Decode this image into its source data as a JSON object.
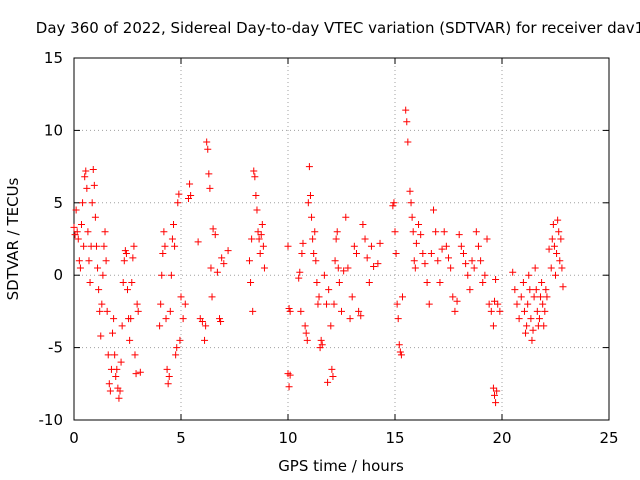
{
  "chart_data": {
    "type": "scatter",
    "title": "Day 360 of 2022, Sidereal Day-to-day VTEC variation (SDTVAR) for receiver dav1",
    "xlabel": "GPS time / hours",
    "ylabel": "SDTVAR / TECUs",
    "xlim": [
      0,
      25
    ],
    "ylim": [
      -10,
      15
    ],
    "xticks": [
      "0",
      "5",
      "10",
      "15",
      "20",
      "25"
    ],
    "yticks": [
      "-10",
      "-5",
      "0",
      "5",
      "10",
      "15"
    ],
    "grid": true,
    "marker": "+",
    "series": [
      {
        "name": "SDTVAR",
        "color": "#ff0000",
        "points": [
          [
            0.0,
            3.3
          ],
          [
            0.05,
            2.8
          ],
          [
            0.1,
            4.5
          ],
          [
            0.15,
            3.0
          ],
          [
            0.2,
            2.5
          ],
          [
            0.25,
            1.0
          ],
          [
            0.3,
            0.5
          ],
          [
            0.35,
            3.5
          ],
          [
            0.4,
            5.0
          ],
          [
            0.45,
            2.0
          ],
          [
            0.5,
            6.8
          ],
          [
            0.55,
            7.2
          ],
          [
            0.6,
            6.0
          ],
          [
            0.65,
            3.0
          ],
          [
            0.7,
            1.0
          ],
          [
            0.75,
            -0.5
          ],
          [
            0.8,
            2.0
          ],
          [
            0.85,
            5.0
          ],
          [
            0.9,
            7.3
          ],
          [
            0.95,
            6.2
          ],
          [
            1.0,
            4.0
          ],
          [
            1.05,
            2.0
          ],
          [
            1.1,
            0.5
          ],
          [
            1.15,
            -1.0
          ],
          [
            1.2,
            -2.5
          ],
          [
            1.25,
            -4.2
          ],
          [
            1.3,
            -2.0
          ],
          [
            1.35,
            0.0
          ],
          [
            1.4,
            2.0
          ],
          [
            1.45,
            3.0
          ],
          [
            1.5,
            1.0
          ],
          [
            1.55,
            -2.5
          ],
          [
            1.6,
            -5.5
          ],
          [
            1.65,
            -7.5
          ],
          [
            1.7,
            -8.0
          ],
          [
            1.75,
            -6.5
          ],
          [
            1.8,
            -4.0
          ],
          [
            1.85,
            -3.0
          ],
          [
            1.9,
            -5.5
          ],
          [
            1.95,
            -7.0
          ],
          [
            2.0,
            -6.5
          ],
          [
            2.05,
            -7.8
          ],
          [
            2.1,
            -8.5
          ],
          [
            2.15,
            -8.0
          ],
          [
            2.2,
            -6.0
          ],
          [
            2.25,
            -3.5
          ],
          [
            2.3,
            -0.5
          ],
          [
            2.35,
            1.0
          ],
          [
            2.4,
            1.7
          ],
          [
            2.45,
            1.5
          ],
          [
            2.5,
            -1.0
          ],
          [
            2.55,
            -3.0
          ],
          [
            2.6,
            -4.5
          ],
          [
            2.65,
            -3.0
          ],
          [
            2.7,
            -0.5
          ],
          [
            2.75,
            1.2
          ],
          [
            2.8,
            2.0
          ],
          [
            2.85,
            -5.5
          ],
          [
            2.9,
            -6.8
          ],
          [
            2.95,
            -2.0
          ],
          [
            3.0,
            -2.5
          ],
          [
            3.1,
            -6.7
          ],
          [
            4.0,
            -3.5
          ],
          [
            4.05,
            -2.0
          ],
          [
            4.1,
            0.0
          ],
          [
            4.15,
            1.5
          ],
          [
            4.2,
            3.0
          ],
          [
            4.25,
            2.0
          ],
          [
            4.3,
            -3.0
          ],
          [
            4.35,
            -6.5
          ],
          [
            4.4,
            -7.5
          ],
          [
            4.45,
            -7.0
          ],
          [
            4.5,
            -2.5
          ],
          [
            4.55,
            0.0
          ],
          [
            4.6,
            2.5
          ],
          [
            4.65,
            3.5
          ],
          [
            4.7,
            2.0
          ],
          [
            4.75,
            -5.5
          ],
          [
            4.8,
            -5.0
          ],
          [
            4.85,
            5.0
          ],
          [
            4.9,
            5.6
          ],
          [
            4.95,
            -4.5
          ],
          [
            5.0,
            -1.5
          ],
          [
            5.1,
            -3.0
          ],
          [
            5.2,
            -2.0
          ],
          [
            5.35,
            5.3
          ],
          [
            5.4,
            6.3
          ],
          [
            5.45,
            5.5
          ],
          [
            5.8,
            2.3
          ],
          [
            5.9,
            -3.0
          ],
          [
            6.0,
            -3.2
          ],
          [
            6.1,
            -4.5
          ],
          [
            6.15,
            -3.5
          ],
          [
            6.2,
            9.2
          ],
          [
            6.25,
            8.7
          ],
          [
            6.3,
            7.0
          ],
          [
            6.35,
            6.0
          ],
          [
            6.4,
            0.5
          ],
          [
            6.45,
            -1.5
          ],
          [
            6.5,
            3.2
          ],
          [
            6.6,
            2.8
          ],
          [
            6.7,
            0.2
          ],
          [
            6.8,
            -3.0
          ],
          [
            6.85,
            -3.2
          ],
          [
            6.9,
            1.2
          ],
          [
            7.0,
            0.8
          ],
          [
            7.2,
            1.7
          ],
          [
            8.2,
            1.0
          ],
          [
            8.25,
            -0.5
          ],
          [
            8.3,
            2.5
          ],
          [
            8.35,
            -2.5
          ],
          [
            8.4,
            7.2
          ],
          [
            8.45,
            6.8
          ],
          [
            8.5,
            5.5
          ],
          [
            8.55,
            4.5
          ],
          [
            8.6,
            3.0
          ],
          [
            8.65,
            2.5
          ],
          [
            8.7,
            1.5
          ],
          [
            8.75,
            2.8
          ],
          [
            8.8,
            3.5
          ],
          [
            8.85,
            2.0
          ],
          [
            8.9,
            0.5
          ],
          [
            10.0,
            2.0
          ],
          [
            10.05,
            -2.3
          ],
          [
            10.1,
            -2.5
          ],
          [
            10.0,
            -6.8
          ],
          [
            10.05,
            -7.7
          ],
          [
            10.1,
            -6.9
          ],
          [
            10.5,
            -0.2
          ],
          [
            10.55,
            0.2
          ],
          [
            10.6,
            -2.5
          ],
          [
            10.65,
            1.5
          ],
          [
            10.7,
            2.2
          ],
          [
            10.8,
            -3.5
          ],
          [
            10.85,
            -4.0
          ],
          [
            10.9,
            -4.5
          ],
          [
            10.95,
            5.0
          ],
          [
            11.0,
            7.5
          ],
          [
            11.05,
            5.5
          ],
          [
            11.1,
            4.0
          ],
          [
            11.15,
            2.5
          ],
          [
            11.2,
            1.5
          ],
          [
            11.25,
            3.0
          ],
          [
            11.3,
            1.0
          ],
          [
            11.35,
            -0.5
          ],
          [
            11.4,
            -2.0
          ],
          [
            11.45,
            -1.5
          ],
          [
            11.5,
            -5.0
          ],
          [
            11.55,
            -4.5
          ],
          [
            11.6,
            -4.8
          ],
          [
            11.7,
            0.0
          ],
          [
            11.8,
            -2.0
          ],
          [
            11.85,
            -7.4
          ],
          [
            11.9,
            -1.0
          ],
          [
            12.0,
            -3.5
          ],
          [
            12.05,
            -6.5
          ],
          [
            12.1,
            -7.0
          ],
          [
            12.15,
            -2.0
          ],
          [
            12.2,
            1.0
          ],
          [
            12.25,
            2.5
          ],
          [
            12.3,
            3.0
          ],
          [
            12.35,
            0.5
          ],
          [
            12.4,
            -0.5
          ],
          [
            12.5,
            -2.5
          ],
          [
            12.6,
            0.3
          ],
          [
            12.7,
            4.0
          ],
          [
            12.8,
            0.5
          ],
          [
            12.9,
            -3.0
          ],
          [
            13.0,
            -1.5
          ],
          [
            13.1,
            2.0
          ],
          [
            13.2,
            1.5
          ],
          [
            13.3,
            -2.5
          ],
          [
            13.4,
            -2.8
          ],
          [
            13.5,
            3.5
          ],
          [
            13.6,
            2.5
          ],
          [
            13.7,
            1.2
          ],
          [
            13.8,
            -0.5
          ],
          [
            13.9,
            2.0
          ],
          [
            14.0,
            0.6
          ],
          [
            14.2,
            0.8
          ],
          [
            14.3,
            2.2
          ],
          [
            14.9,
            4.8
          ],
          [
            14.95,
            5.0
          ],
          [
            15.0,
            3.0
          ],
          [
            15.05,
            1.5
          ],
          [
            15.1,
            -2.0
          ],
          [
            15.15,
            -3.0
          ],
          [
            15.2,
            -4.8
          ],
          [
            15.25,
            -5.3
          ],
          [
            15.3,
            -5.5
          ],
          [
            15.35,
            -1.5
          ],
          [
            15.5,
            11.4
          ],
          [
            15.55,
            10.6
          ],
          [
            15.6,
            9.2
          ],
          [
            15.7,
            5.8
          ],
          [
            15.75,
            5.0
          ],
          [
            15.8,
            4.0
          ],
          [
            15.85,
            3.0
          ],
          [
            15.9,
            1.0
          ],
          [
            15.95,
            0.5
          ],
          [
            16.0,
            2.2
          ],
          [
            16.1,
            3.5
          ],
          [
            16.2,
            2.8
          ],
          [
            16.3,
            1.5
          ],
          [
            16.4,
            0.8
          ],
          [
            16.5,
            -0.5
          ],
          [
            16.6,
            -2.0
          ],
          [
            16.7,
            1.5
          ],
          [
            16.8,
            4.5
          ],
          [
            16.9,
            3.0
          ],
          [
            17.0,
            1.0
          ],
          [
            17.1,
            -0.5
          ],
          [
            17.2,
            1.8
          ],
          [
            17.3,
            3.0
          ],
          [
            17.4,
            2.0
          ],
          [
            17.5,
            1.2
          ],
          [
            17.6,
            0.5
          ],
          [
            17.7,
            -1.5
          ],
          [
            17.8,
            -2.5
          ],
          [
            17.9,
            -1.8
          ],
          [
            18.0,
            2.8
          ],
          [
            18.1,
            2.0
          ],
          [
            18.2,
            1.5
          ],
          [
            18.3,
            0.8
          ],
          [
            18.4,
            0.0
          ],
          [
            18.5,
            -1.0
          ],
          [
            18.6,
            1.0
          ],
          [
            18.7,
            0.5
          ],
          [
            18.8,
            3.0
          ],
          [
            18.9,
            2.0
          ],
          [
            19.0,
            1.0
          ],
          [
            19.1,
            -0.5
          ],
          [
            19.2,
            0.0
          ],
          [
            19.3,
            2.5
          ],
          [
            19.4,
            -2.0
          ],
          [
            19.5,
            -2.5
          ],
          [
            19.6,
            -3.5
          ],
          [
            19.65,
            -1.8
          ],
          [
            19.7,
            -0.3
          ],
          [
            19.8,
            -2.0
          ],
          [
            19.9,
            -2.5
          ],
          [
            19.6,
            -7.8
          ],
          [
            19.65,
            -8.3
          ],
          [
            19.7,
            -8.8
          ],
          [
            19.75,
            -8.0
          ],
          [
            20.5,
            0.2
          ],
          [
            20.6,
            -1.0
          ],
          [
            20.7,
            -2.0
          ],
          [
            20.8,
            -3.0
          ],
          [
            20.9,
            -1.5
          ],
          [
            21.0,
            -0.5
          ],
          [
            21.05,
            -2.5
          ],
          [
            21.1,
            -4.0
          ],
          [
            21.15,
            -3.5
          ],
          [
            21.2,
            -2.0
          ],
          [
            21.25,
            0.0
          ],
          [
            21.3,
            -1.0
          ],
          [
            21.35,
            -3.0
          ],
          [
            21.4,
            -4.5
          ],
          [
            21.45,
            -3.8
          ],
          [
            21.5,
            -1.5
          ],
          [
            21.55,
            0.5
          ],
          [
            21.6,
            -1.0
          ],
          [
            21.65,
            -2.5
          ],
          [
            21.7,
            -3.5
          ],
          [
            21.75,
            -3.0
          ],
          [
            21.8,
            -1.5
          ],
          [
            21.85,
            -0.5
          ],
          [
            21.9,
            -2.0
          ],
          [
            21.95,
            -3.5
          ],
          [
            22.0,
            -2.5
          ],
          [
            22.05,
            -1.0
          ],
          [
            22.1,
            -1.5
          ],
          [
            22.2,
            1.8
          ],
          [
            22.3,
            0.5
          ],
          [
            22.35,
            2.5
          ],
          [
            22.4,
            3.5
          ],
          [
            22.45,
            2.0
          ],
          [
            22.5,
            0.0
          ],
          [
            22.55,
            1.5
          ],
          [
            22.6,
            3.8
          ],
          [
            22.65,
            3.0
          ],
          [
            22.7,
            1.0
          ],
          [
            22.75,
            2.5
          ],
          [
            22.8,
            0.5
          ],
          [
            22.85,
            -0.8
          ]
        ]
      }
    ]
  }
}
